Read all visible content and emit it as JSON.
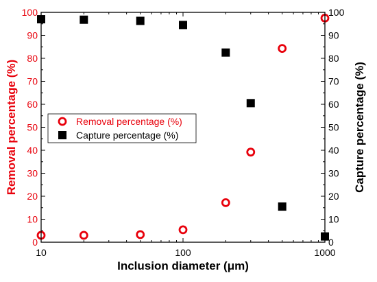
{
  "chart_data": {
    "type": "scatter",
    "xlabel": "Inclusion diameter (μm)",
    "ylabel_left": "Removal percentage (%)",
    "ylabel_right": "Capture percentage (%)",
    "x_scale": "log",
    "xlim": [
      10,
      1000
    ],
    "ylim": [
      0,
      100
    ],
    "x_ticks": [
      "10",
      "100",
      "1000"
    ],
    "y_ticks": [
      "0",
      "10",
      "20",
      "30",
      "40",
      "50",
      "60",
      "70",
      "80",
      "90",
      "100"
    ],
    "legend_position": "center-left",
    "series": [
      {
        "name": "Removal percentage (%)",
        "axis": "left",
        "marker": "open-circle",
        "color": "#e8000b",
        "x": [
          10,
          20,
          50,
          100,
          200,
          300,
          500,
          1000
        ],
        "y": [
          3,
          3,
          3.3,
          5.4,
          17.2,
          39.2,
          84.3,
          97.5
        ]
      },
      {
        "name": "Capture percentage (%)",
        "axis": "right",
        "marker": "filled-square",
        "color": "#000000",
        "x": [
          10,
          20,
          50,
          100,
          200,
          300,
          500,
          1000
        ],
        "y": [
          97,
          96.8,
          96.3,
          94.5,
          82.5,
          60.5,
          15.5,
          2.5
        ]
      }
    ]
  }
}
